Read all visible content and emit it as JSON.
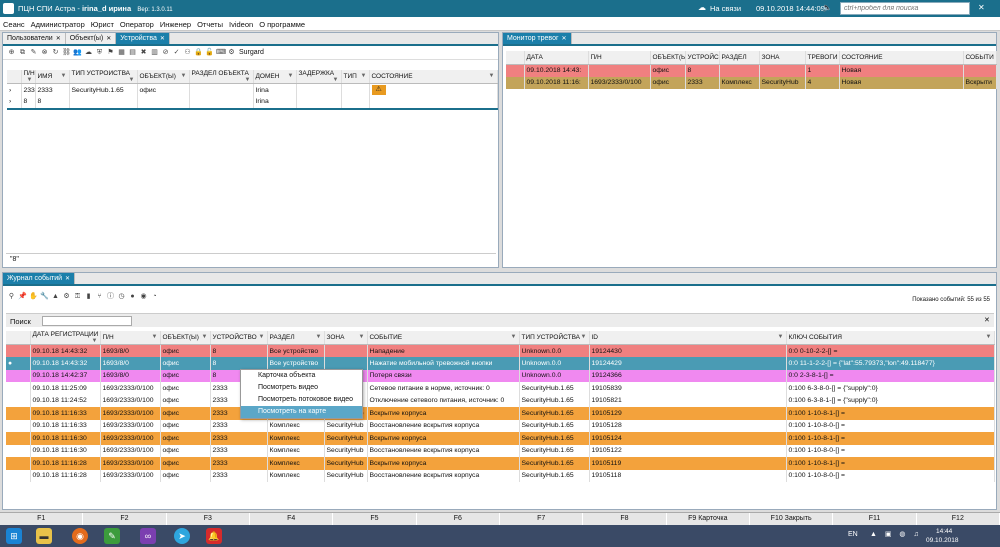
{
  "window": {
    "title_prefix": "ПЦН СПИ Астра -",
    "user": "irina_d ирина",
    "version": "Вер: 1.3.0.11",
    "status": "На связи",
    "datetime": "09.10.2018 14:44:09",
    "search_placeholder": "ctrl+пробел для поиска"
  },
  "menu": [
    "Сеанс",
    "Администратор",
    "Юрист",
    "Оператор",
    "Инженер",
    "Отчеты",
    "Ivideon",
    "О программе"
  ],
  "left_tabs": [
    "Пользователи",
    "Объект(ы)",
    "Устройства"
  ],
  "device_toolbar_label": "Surgard",
  "device_columns": [
    "П/Н",
    "ИМЯ",
    "ТИП УСТРОЙСТВА",
    "ОБЪЕКТ(Ы)",
    "РАЗДЕЛ ОБЪЕКТА",
    "ДОМЕН",
    "ЗАДЕРЖКА",
    "ТИП",
    "СОСТОЯНИЕ"
  ],
  "devices": [
    [
      "2333",
      "2333",
      "SecurityHub.1.65",
      "офис",
      "",
      "Irina",
      "",
      "",
      ""
    ],
    [
      "8",
      "8",
      "",
      "",
      "",
      "Irina",
      "",
      "",
      ""
    ]
  ],
  "device_filter": "\"8\"",
  "monitor": {
    "tab": "Монитор тревог",
    "columns": [
      "",
      "ДАТА",
      "П/Н",
      "ОБЪЕКТ(Ы)",
      "УСТРОЙС",
      "РАЗДЕЛ",
      "ЗОНА",
      "ТРЕВОГИ",
      "СОСТОЯНИЕ",
      "СОБЫТИ"
    ],
    "rows": [
      {
        "style": "red",
        "cells": [
          "",
          "09.10.2018 14:43:",
          "",
          "офис",
          "8",
          "",
          "",
          "1",
          "Новая",
          ""
        ]
      },
      {
        "style": "olive",
        "cells": [
          "",
          "09.10.2018 11:16:",
          "1693/2333/0/100",
          "офис",
          "2333",
          "Комплекс",
          "SecurityHub",
          "4",
          "Новая",
          "Вскрыти"
        ]
      }
    ]
  },
  "journal": {
    "tab": "Журнал событий",
    "shown": "Показано событий: 55 из 55",
    "search_label": "Поиск",
    "columns": [
      "",
      "ДАТА РЕГИСТРАЦИИ",
      "П/Н",
      "ОБЪЕКТ(Ы)",
      "УСТРОЙСТВО",
      "РАЗДЕЛ",
      "ЗОНА",
      "СОБЫТИЕ",
      "ТИП УСТРОЙСТВА",
      "ID",
      "КЛЮЧ СОБЫТИЯ"
    ],
    "rows": [
      {
        "style": "red",
        "cells": [
          "",
          "09.10.18 14:43:32",
          "1693/8/0",
          "офис",
          "8",
          "Все устройство",
          "",
          "Нападение",
          "Unknown.0.0",
          "19124430",
          "0:0 0-10-2-2-[] ="
        ]
      },
      {
        "style": "blue",
        "cells": [
          "●",
          "09.10.18 14:43:32",
          "1693/8/0",
          "офис",
          "8",
          "Все устройство",
          "",
          "Нажатие мобильной тревожной кнопки",
          "Unknown.0.0",
          "19124429",
          "0:0 11-1-2-2-[] = {\"lat\":55.79373,\"lon\":49.118477}"
        ]
      },
      {
        "style": "pink",
        "cells": [
          "",
          "09.10.18 14:42:37",
          "1693/8/0",
          "офис",
          "8",
          "Все устройство",
          "",
          "Потеря связи",
          "Unknown.0.0",
          "19124366",
          "0:0 2-3-8-1-[] ="
        ]
      },
      {
        "style": "white",
        "cells": [
          "",
          "09.10.18 11:25:09",
          "1693/2333/0/100",
          "офис",
          "2333",
          "",
          "",
          "Сетевое питание в норме, источник: 0",
          "SecurityHub.1.65",
          "19105839",
          "0:100 6-3-8-0-[] = {\"supply\":0}"
        ]
      },
      {
        "style": "white",
        "cells": [
          "",
          "09.10.18 11:24:52",
          "1693/2333/0/100",
          "офис",
          "2333",
          "",
          "",
          "Отключение сетевого питания, источник: 0",
          "SecurityHub.1.65",
          "19105821",
          "0:100 6-3-8-1-[] = {\"supply\":0}"
        ]
      },
      {
        "style": "orange",
        "cells": [
          "",
          "09.10.18 11:16:33",
          "1693/2333/0/100",
          "офис",
          "2333",
          "Комплекс",
          "SecurityHub",
          "Вскрытие корпуса",
          "SecurityHub.1.65",
          "19105129",
          "0:100 1-10-8-1-[] ="
        ]
      },
      {
        "style": "white",
        "cells": [
          "",
          "09.10.18 11:16:33",
          "1693/2333/0/100",
          "офис",
          "2333",
          "Комплекс",
          "SecurityHub",
          "Восстановление вскрытия корпуса",
          "SecurityHub.1.65",
          "19105128",
          "0:100 1-10-8-0-[] ="
        ]
      },
      {
        "style": "orange",
        "cells": [
          "",
          "09.10.18 11:16:30",
          "1693/2333/0/100",
          "офис",
          "2333",
          "Комплекс",
          "SecurityHub",
          "Вскрытие корпуса",
          "SecurityHub.1.65",
          "19105124",
          "0:100 1-10-8-1-[] ="
        ]
      },
      {
        "style": "white",
        "cells": [
          "",
          "09.10.18 11:16:30",
          "1693/2333/0/100",
          "офис",
          "2333",
          "Комплекс",
          "SecurityHub",
          "Восстановление вскрытия корпуса",
          "SecurityHub.1.65",
          "19105122",
          "0:100 1-10-8-0-[] ="
        ]
      },
      {
        "style": "orange",
        "cells": [
          "",
          "09.10.18 11:16:28",
          "1693/2333/0/100",
          "офис",
          "2333",
          "Комплекс",
          "SecurityHub",
          "Вскрытие корпуса",
          "SecurityHub.1.65",
          "19105119",
          "0:100 1-10-8-1-[] ="
        ]
      },
      {
        "style": "white",
        "cells": [
          "",
          "09.10.18 11:16:28",
          "1693/2333/0/100",
          "офис",
          "2333",
          "Комплекс",
          "SecurityHub",
          "Восстановление вскрытия корпуса",
          "SecurityHub.1.65",
          "19105118",
          "0:100 1-10-8-0-[] ="
        ]
      }
    ]
  },
  "context_menu": [
    "Карточка объекта",
    "Посмотреть видео",
    "Посмотреть потоковое видео",
    "Посмотреть на карте"
  ],
  "fkeys": [
    "F1",
    "F2",
    "F3",
    "F4",
    "F5",
    "F6",
    "F7",
    "F8",
    "F9 Карточка",
    "F10 Закрыть",
    "F11",
    "F12"
  ],
  "tray": {
    "lang": "EN",
    "time": "14:44",
    "date": "09.10.2018"
  },
  "colors": {
    "accent": "#1b6f8c",
    "red": "#f08080",
    "blue": "#4a9bb4",
    "pink": "#f089f0",
    "orange": "#f3a23c",
    "olive": "#c3a45a"
  }
}
